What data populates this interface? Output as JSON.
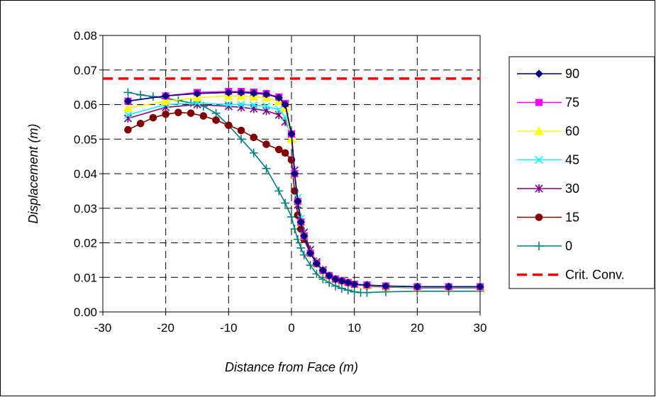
{
  "chart_data": {
    "type": "line",
    "title": "",
    "xlabel": "Distance from Face (m)",
    "ylabel": "Displacement (m)",
    "xlim": [
      -30,
      30
    ],
    "ylim": [
      0,
      0.08
    ],
    "xticks": [
      "-30",
      "-20",
      "-10",
      "0",
      "10",
      "20",
      "30"
    ],
    "yticks": [
      "0.00",
      "0.01",
      "0.02",
      "0.03",
      "0.04",
      "0.05",
      "0.06",
      "0.07",
      "0.08"
    ],
    "grid": "both, dashed",
    "legend_position": "right",
    "series": [
      {
        "name": "90",
        "color": "#000080",
        "marker": "diamond",
        "x": [
          -26,
          -20,
          -15,
          -10,
          -8,
          -6,
          -4,
          -2,
          -1,
          0,
          0.5,
          1,
          1.5,
          2,
          3,
          4,
          5,
          6,
          7,
          8,
          9,
          10,
          12,
          15,
          20,
          25,
          30
        ],
        "y": [
          0.061,
          0.0625,
          0.0632,
          0.0635,
          0.0635,
          0.0633,
          0.063,
          0.062,
          0.06,
          0.0515,
          0.04,
          0.032,
          0.026,
          0.022,
          0.017,
          0.014,
          0.012,
          0.0105,
          0.0095,
          0.009,
          0.0085,
          0.008,
          0.0078,
          0.0075,
          0.0073,
          0.0073,
          0.0073
        ]
      },
      {
        "name": "75",
        "color": "#ff00ff",
        "marker": "square",
        "x": [
          -26,
          -20,
          -15,
          -10,
          -8,
          -6,
          -4,
          -2,
          -1,
          0,
          0.5,
          1,
          1.5,
          2,
          3,
          4,
          5,
          6,
          7,
          8,
          9,
          10,
          12,
          15,
          20,
          25,
          30
        ],
        "y": [
          0.061,
          0.0625,
          0.0635,
          0.0638,
          0.0638,
          0.0636,
          0.0632,
          0.0622,
          0.0603,
          0.0515,
          0.04,
          0.032,
          0.026,
          0.022,
          0.017,
          0.014,
          0.012,
          0.0105,
          0.0095,
          0.009,
          0.0085,
          0.008,
          0.0078,
          0.0075,
          0.0073,
          0.0073,
          0.0073
        ]
      },
      {
        "name": "60",
        "color": "#ffff00",
        "marker": "triangle",
        "x": [
          -26,
          -20,
          -15,
          -10,
          -8,
          -6,
          -4,
          -2,
          -1,
          0,
          0.5,
          1,
          1.5,
          2,
          3,
          4,
          5,
          6,
          7,
          8,
          9,
          10,
          12,
          15,
          20,
          25,
          30
        ],
        "y": [
          0.059,
          0.061,
          0.062,
          0.0625,
          0.0625,
          0.0623,
          0.062,
          0.061,
          0.059,
          0.05,
          0.04,
          0.032,
          0.026,
          0.022,
          0.017,
          0.014,
          0.012,
          0.0105,
          0.0095,
          0.009,
          0.0085,
          0.008,
          0.0077,
          0.0074,
          0.0072,
          0.0072,
          0.0072
        ]
      },
      {
        "name": "45",
        "color": "#00ffff",
        "marker": "x",
        "x": [
          -26,
          -20,
          -15,
          -10,
          -8,
          -6,
          -4,
          -2,
          -1,
          0,
          0.5,
          1,
          1.5,
          2,
          3,
          4,
          5,
          6,
          7,
          8,
          9,
          10,
          12,
          15,
          20,
          25,
          30
        ],
        "y": [
          0.057,
          0.06,
          0.0605,
          0.06,
          0.06,
          0.0598,
          0.0595,
          0.0585,
          0.0565,
          0.05,
          0.04,
          0.033,
          0.027,
          0.022,
          0.017,
          0.014,
          0.012,
          0.0105,
          0.0095,
          0.009,
          0.0085,
          0.008,
          0.0077,
          0.0073,
          0.0071,
          0.0071,
          0.0071
        ]
      },
      {
        "name": "30",
        "color": "#800080",
        "marker": "star",
        "x": [
          -26,
          -20,
          -15,
          -10,
          -8,
          -6,
          -4,
          -2,
          -1,
          0,
          0.5,
          1,
          1.5,
          2,
          3,
          4,
          5,
          6,
          7,
          8,
          9,
          10,
          12,
          15,
          20,
          25,
          30
        ],
        "y": [
          0.056,
          0.0592,
          0.06,
          0.0595,
          0.0592,
          0.0588,
          0.0582,
          0.057,
          0.055,
          0.0515,
          0.041,
          0.031,
          0.026,
          0.023,
          0.018,
          0.0145,
          0.0122,
          0.0105,
          0.0095,
          0.009,
          0.0085,
          0.008,
          0.0077,
          0.0073,
          0.007,
          0.007,
          0.007
        ]
      },
      {
        "name": "15",
        "color": "#800000",
        "marker": "circle",
        "x": [
          -26,
          -24,
          -22,
          -20,
          -18,
          -16,
          -14,
          -12,
          -10,
          -8,
          -6,
          -4,
          -2,
          -1,
          0,
          0.5,
          1,
          1.5,
          2,
          3,
          4,
          5,
          6,
          7,
          8,
          9,
          10,
          12,
          15,
          20,
          25,
          30
        ],
        "y": [
          0.0527,
          0.0545,
          0.0562,
          0.0572,
          0.0577,
          0.0575,
          0.0567,
          0.0555,
          0.054,
          0.0525,
          0.0505,
          0.0485,
          0.047,
          0.046,
          0.044,
          0.035,
          0.028,
          0.024,
          0.021,
          0.017,
          0.014,
          0.012,
          0.0105,
          0.0095,
          0.009,
          0.0085,
          0.008,
          0.0075,
          0.0072,
          0.007,
          0.007,
          0.007
        ]
      },
      {
        "name": "0",
        "color": "#008080",
        "marker": "plus",
        "x": [
          -26,
          -24,
          -22,
          -20,
          -18,
          -16,
          -14,
          -12,
          -10,
          -8,
          -6,
          -4,
          -2,
          -1,
          0,
          0.5,
          1,
          1.5,
          2,
          3,
          4,
          5,
          6,
          7,
          8,
          9,
          10,
          11,
          12,
          15,
          20,
          25,
          30
        ],
        "y": [
          0.0635,
          0.0628,
          0.0623,
          0.0618,
          0.0612,
          0.0605,
          0.0595,
          0.0575,
          0.054,
          0.05,
          0.046,
          0.0415,
          0.035,
          0.0315,
          0.0275,
          0.024,
          0.021,
          0.0185,
          0.0165,
          0.0135,
          0.011,
          0.0095,
          0.0085,
          0.0075,
          0.0068,
          0.0063,
          0.0058,
          0.0056,
          0.0056,
          0.0058,
          0.006,
          0.006,
          0.006
        ]
      },
      {
        "name": "Crit. Conv.",
        "color": "#ff0000",
        "marker": "none",
        "dashed": true,
        "x": [
          -30,
          30
        ],
        "y": [
          0.0675,
          0.0675
        ]
      }
    ]
  }
}
